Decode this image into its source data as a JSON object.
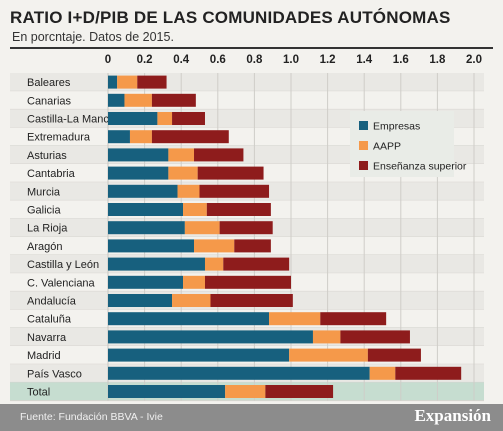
{
  "chart_data": {
    "type": "bar",
    "orientation": "horizontal",
    "stacked": true,
    "title": "RATIO I+D/PIB DE LAS COMUNIDADES AUTÓNOMAS",
    "subtitle": "En porcntaje. Datos de 2015.",
    "xlim": [
      0,
      2.0
    ],
    "x_ticks": [
      "0",
      "0.2",
      "0.4",
      "0.6",
      "0.8",
      "1.0",
      "1.2",
      "1.4",
      "1.6",
      "1.8",
      "2.0"
    ],
    "tick_position": "top",
    "grid": true,
    "legend_position": "right",
    "categories": [
      "Baleares",
      "Canarias",
      "Castilla-La Mancha",
      "Extremadura",
      "Asturias",
      "Cantabria",
      "Murcia",
      "Galicia",
      "La Rioja",
      "Aragón",
      "Castilla y León",
      "C. Valenciana",
      "Andalucía",
      "Cataluña",
      "Navarra",
      "Madrid",
      "País Vasco",
      "Total"
    ],
    "series": [
      {
        "name": "Empresas",
        "color": "#17607e",
        "values": [
          0.05,
          0.09,
          0.27,
          0.12,
          0.33,
          0.33,
          0.38,
          0.41,
          0.42,
          0.47,
          0.53,
          0.41,
          0.35,
          0.88,
          1.12,
          0.99,
          1.43,
          0.64
        ]
      },
      {
        "name": "AAPP",
        "color": "#f5994a",
        "values": [
          0.11,
          0.15,
          0.08,
          0.12,
          0.14,
          0.16,
          0.12,
          0.13,
          0.19,
          0.22,
          0.1,
          0.12,
          0.21,
          0.28,
          0.15,
          0.43,
          0.14,
          0.22
        ]
      },
      {
        "name": "Enseñanza superior",
        "color": "#8e1c1c",
        "values": [
          0.16,
          0.24,
          0.18,
          0.42,
          0.27,
          0.36,
          0.38,
          0.35,
          0.29,
          0.2,
          0.36,
          0.47,
          0.45,
          0.36,
          0.38,
          0.29,
          0.36,
          0.37
        ]
      }
    ],
    "highlight_row": "Total",
    "highlight_color": "#c6ddd0",
    "legend_box_color": "#e9ece7"
  },
  "footer": {
    "source": "Fuente: Fundación BBVA - Ivie",
    "brand": "Expansión"
  }
}
